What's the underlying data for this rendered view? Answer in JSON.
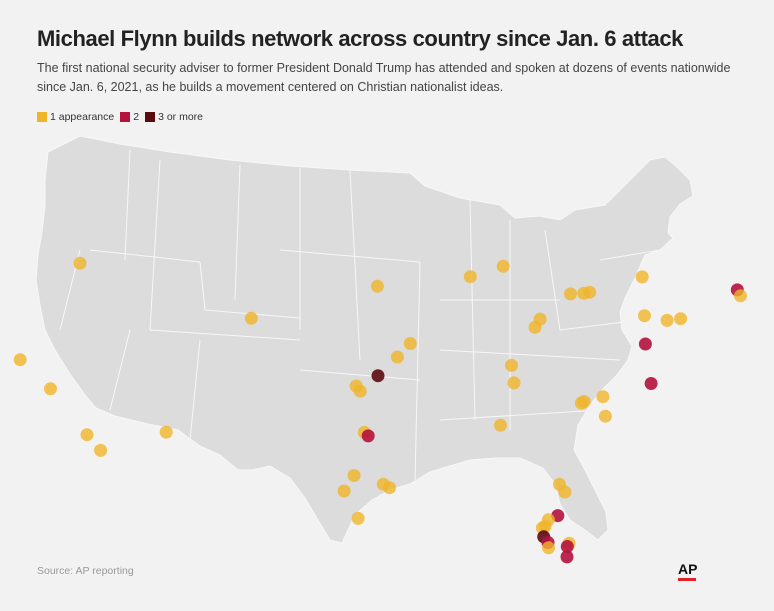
{
  "title": "Michael Flynn builds network across country since Jan. 6 attack",
  "subtitle": "The first national security adviser to former President Donald Trump has attended and spoken at dozens of events nationwide since Jan. 6, 2021, as he builds a movement centered on Christian nationalist ideas.",
  "legend": [
    {
      "label": "1 appearance",
      "color": "#f0b429"
    },
    {
      "label": "2",
      "color": "#b5123d"
    },
    {
      "label": "3 or more",
      "color": "#5c0a0f"
    }
  ],
  "colors": {
    "land": "#dcdcdc",
    "border": "#f7f7f7",
    "background": "#f2f2f2"
  },
  "source": "Source: AP reporting",
  "logo": "AP",
  "events": [
    {
      "lon": -122.3,
      "lat": 47.6,
      "count": 1
    },
    {
      "lon": -121.5,
      "lat": 38.6,
      "count": 1
    },
    {
      "lon": -116.2,
      "lat": 43.6,
      "count": 1
    },
    {
      "lon": -119.8,
      "lat": 36.7,
      "count": 1
    },
    {
      "lon": -117.8,
      "lat": 33.8,
      "count": 1
    },
    {
      "lon": -117.0,
      "lat": 32.8,
      "count": 1
    },
    {
      "lon": -111.9,
      "lat": 33.4,
      "count": 1
    },
    {
      "lon": -104.9,
      "lat": 39.6,
      "count": 1
    },
    {
      "lon": -96.0,
      "lat": 41.3,
      "count": 1
    },
    {
      "lon": -97.5,
      "lat": 35.5,
      "count": 1
    },
    {
      "lon": -97.2,
      "lat": 35.2,
      "count": 1
    },
    {
      "lon": -95.9,
      "lat": 36.1,
      "count": 3
    },
    {
      "lon": -96.9,
      "lat": 32.8,
      "count": 1
    },
    {
      "lon": -96.6,
      "lat": 32.6,
      "count": 2
    },
    {
      "lon": -97.7,
      "lat": 30.3,
      "count": 1
    },
    {
      "lon": -98.5,
      "lat": 29.4,
      "count": 1
    },
    {
      "lon": -95.4,
      "lat": 29.8,
      "count": 1
    },
    {
      "lon": -94.9,
      "lat": 29.6,
      "count": 1
    },
    {
      "lon": -97.4,
      "lat": 27.8,
      "count": 1
    },
    {
      "lon": -94.5,
      "lat": 37.2,
      "count": 1
    },
    {
      "lon": -93.6,
      "lat": 38.0,
      "count": 1
    },
    {
      "lon": -89.6,
      "lat": 42.0,
      "count": 1
    },
    {
      "lon": -87.4,
      "lat": 42.7,
      "count": 1
    },
    {
      "lon": -86.2,
      "lat": 37.0,
      "count": 1
    },
    {
      "lon": -85.9,
      "lat": 36.0,
      "count": 1
    },
    {
      "lon": -86.6,
      "lat": 33.5,
      "count": 1
    },
    {
      "lon": -84.8,
      "lat": 39.3,
      "count": 1
    },
    {
      "lon": -84.5,
      "lat": 39.8,
      "count": 1
    },
    {
      "lon": -82.6,
      "lat": 41.4,
      "count": 1
    },
    {
      "lon": -81.7,
      "lat": 41.5,
      "count": 1
    },
    {
      "lon": -81.3,
      "lat": 41.6,
      "count": 1
    },
    {
      "lon": -80.8,
      "lat": 35.2,
      "count": 1
    },
    {
      "lon": -80.6,
      "lat": 35.3,
      "count": 1
    },
    {
      "lon": -79.3,
      "lat": 35.7,
      "count": 1
    },
    {
      "lon": -78.9,
      "lat": 34.6,
      "count": 1
    },
    {
      "lon": -77.9,
      "lat": 42.8,
      "count": 1
    },
    {
      "lon": -77.3,
      "lat": 40.6,
      "count": 1
    },
    {
      "lon": -76.9,
      "lat": 39.0,
      "count": 2
    },
    {
      "lon": -75.7,
      "lat": 40.5,
      "count": 1
    },
    {
      "lon": -74.8,
      "lat": 40.7,
      "count": 1
    },
    {
      "lon": -76.0,
      "lat": 36.8,
      "count": 2
    },
    {
      "lon": -71.4,
      "lat": 42.8,
      "count": 2
    },
    {
      "lon": -71.1,
      "lat": 42.5,
      "count": 1
    },
    {
      "lon": -81.6,
      "lat": 30.4,
      "count": 1
    },
    {
      "lon": -81.1,
      "lat": 30.0,
      "count": 1
    },
    {
      "lon": -81.4,
      "lat": 28.6,
      "count": 2
    },
    {
      "lon": -82.1,
      "lat": 28.3,
      "count": 1
    },
    {
      "lon": -82.3,
      "lat": 27.9,
      "count": 1
    },
    {
      "lon": -82.5,
      "lat": 27.8,
      "count": 1
    },
    {
      "lon": -82.3,
      "lat": 27.3,
      "count": 3
    },
    {
      "lon": -81.9,
      "lat": 27.0,
      "count": 2
    },
    {
      "lon": -81.8,
      "lat": 26.7,
      "count": 1
    },
    {
      "lon": -80.2,
      "lat": 27.1,
      "count": 1
    },
    {
      "lon": -80.3,
      "lat": 26.9,
      "count": 2
    },
    {
      "lon": -80.2,
      "lat": 26.3,
      "count": 2
    }
  ]
}
